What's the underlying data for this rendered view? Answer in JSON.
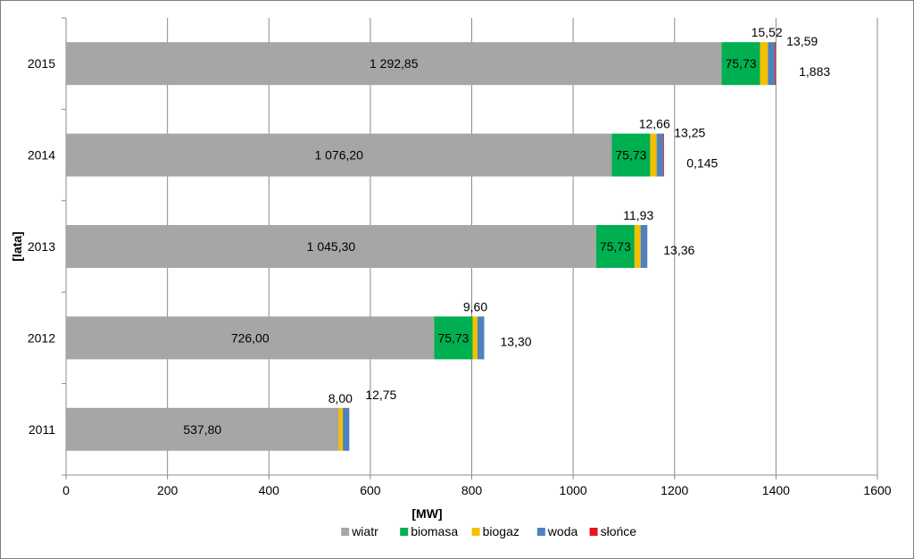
{
  "chart_data": {
    "type": "bar",
    "orientation": "horizontal",
    "stacked": true,
    "categories": [
      "2011",
      "2012",
      "2013",
      "2014",
      "2015"
    ],
    "series": [
      {
        "name": "wiatr",
        "color": "#a6a6a6",
        "values": [
          537.8,
          726.0,
          1045.3,
          1076.2,
          1292.85
        ],
        "labels": [
          "537,80",
          "726,00",
          "1 045,30",
          "1 076,20",
          "1 292,85"
        ]
      },
      {
        "name": "biomasa",
        "color": "#00b050",
        "values": [
          0,
          75.73,
          75.73,
          75.73,
          75.73
        ],
        "labels": [
          "",
          "75,73",
          "75,73",
          "75,73",
          "75,73"
        ]
      },
      {
        "name": "biogaz",
        "color": "#f5c000",
        "values": [
          8.0,
          9.6,
          11.93,
          12.66,
          15.52
        ],
        "labels": [
          "8,00",
          "9,60",
          "11,93",
          "12,66",
          "15,52"
        ]
      },
      {
        "name": "woda",
        "color": "#4f81bd",
        "values": [
          12.75,
          13.3,
          13.36,
          13.25,
          13.59
        ],
        "labels": [
          "12,75",
          "13,30",
          "13,36",
          "13,25",
          "13,59"
        ]
      },
      {
        "name": "słońce",
        "color": "#e8141b",
        "values": [
          0,
          0,
          0,
          0.145,
          1.883
        ],
        "labels": [
          "",
          "",
          "",
          "0,145",
          "1,883"
        ]
      }
    ],
    "xlabel": "[MW]",
    "ylabel": "[lata]",
    "xlim": [
      0,
      1600
    ],
    "xticks": [
      "0",
      "200",
      "400",
      "600",
      "800",
      "1000",
      "1200",
      "1400",
      "1600"
    ],
    "grid": "vertical",
    "legend": "bottom"
  }
}
